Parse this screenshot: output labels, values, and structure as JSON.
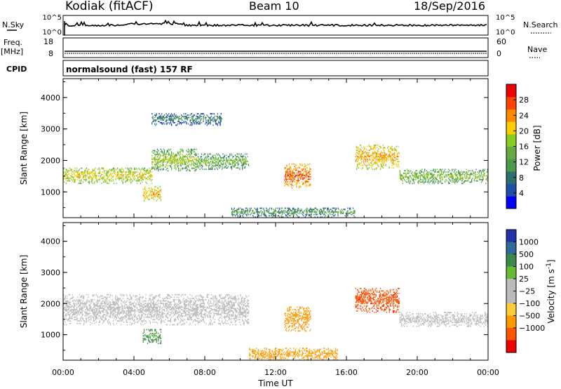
{
  "header": {
    "title": "Kodiak (fitACF)",
    "beam": "Beam 10",
    "date": "18/Sep/2016"
  },
  "panels": {
    "nsky": {
      "label": "N.Sky",
      "ticks_left": [
        "10^5",
        "10^0"
      ],
      "right_label": "N.Search",
      "ticks_right": [
        "10^5",
        "10^0"
      ]
    },
    "freq": {
      "label": "Freq.",
      "unit": "[MHz]",
      "ticks_left": [
        "18",
        "8"
      ],
      "right_label": "Nave",
      "ticks_right": [
        "60",
        "0"
      ]
    },
    "cpid": {
      "label": "CPID",
      "text": "normalsound (fast) 157 RF"
    }
  },
  "colors": {
    "power": [
      "#0000ff",
      "#1f4faa",
      "#2e6e6e",
      "#4c9a4c",
      "#66bb33",
      "#aacc22",
      "#ffcc00",
      "#ff8800",
      "#ff4400",
      "#ee0000"
    ],
    "velocity": [
      "#2233aa",
      "#2f6a9a",
      "#3b8a4a",
      "#66bb33",
      "#bbbbbb",
      "#bbbbbb",
      "#ffcc33",
      "#ff9900",
      "#ff5500",
      "#ee0000"
    ],
    "power_cbar": [
      "#0000ff",
      "#1f4faa",
      "#2e6e6e",
      "#4c9a4c",
      "#66aa44",
      "#88cc22",
      "#ffcc00",
      "#ff8800",
      "#ff4400",
      "#ee0000"
    ],
    "velocity_cbar": [
      "#2233aa",
      "#2f6a9a",
      "#3b8a4a",
      "#66bb33",
      "#bbbbbb",
      "#bbbbbb",
      "#ffcc33",
      "#ff9900",
      "#ff5500",
      "#ee0000"
    ]
  },
  "chart_data": [
    {
      "type": "heatmap",
      "title": "Power",
      "xlabel": "Time UT",
      "ylabel": "Slant Range [km]",
      "xlim": [
        0,
        24
      ],
      "ylim": [
        180,
        4600
      ],
      "x_ticks": [
        "00:00",
        "04:00",
        "08:00",
        "12:00",
        "16:00",
        "20:00",
        "00:00"
      ],
      "y_ticks": [
        1000,
        2000,
        3000,
        4000
      ],
      "colorbar": {
        "label": "Power [dB]",
        "ticks": [
          4,
          8,
          12,
          16,
          20,
          24,
          28
        ],
        "range": [
          0,
          32
        ]
      },
      "features": [
        {
          "t": [
            0.0,
            5.0
          ],
          "range": [
            1250,
            1750
          ],
          "value": 17
        },
        {
          "t": [
            5.0,
            7.5
          ],
          "range": [
            1650,
            2350
          ],
          "value": 14
        },
        {
          "t": [
            7.5,
            10.5
          ],
          "range": [
            1700,
            2200
          ],
          "value": 12
        },
        {
          "t": [
            4.5,
            5.5
          ],
          "range": [
            700,
            1150
          ],
          "value": 20
        },
        {
          "t": [
            12.5,
            14.0
          ],
          "range": [
            1100,
            1900
          ],
          "value": 24
        },
        {
          "t": [
            16.5,
            19.0
          ],
          "range": [
            1700,
            2500
          ],
          "value": 20
        },
        {
          "t": [
            19.0,
            24.0
          ],
          "range": [
            1250,
            1700
          ],
          "value": 13
        },
        {
          "t": [
            5.0,
            9.0
          ],
          "range": [
            3100,
            3500
          ],
          "value": 7
        },
        {
          "t": [
            9.5,
            16.5
          ],
          "range": [
            180,
            500
          ],
          "value": 9
        }
      ]
    },
    {
      "type": "heatmap",
      "title": "Velocity",
      "xlabel": "Time UT",
      "ylabel": "Slant Range [km]",
      "xlim": [
        0,
        24
      ],
      "ylim": [
        180,
        4600
      ],
      "x_ticks": [
        "00:00",
        "04:00",
        "08:00",
        "12:00",
        "16:00",
        "20:00",
        "00:00"
      ],
      "y_ticks": [
        1000,
        2000,
        3000,
        4000
      ],
      "colorbar": {
        "label": "Velocity [m s^-1]",
        "ticks": [
          "1000",
          "500",
          "100",
          "25",
          "−25",
          "−100",
          "−500",
          "−1000"
        ]
      },
      "features": [
        {
          "t": [
            0.0,
            10.5
          ],
          "range": [
            1300,
            2300
          ],
          "value": 0
        },
        {
          "t": [
            4.5,
            5.5
          ],
          "range": [
            700,
            1150
          ],
          "value": 150
        },
        {
          "t": [
            12.5,
            14.0
          ],
          "range": [
            1100,
            1900
          ],
          "value": -300
        },
        {
          "t": [
            16.5,
            19.0
          ],
          "range": [
            1700,
            2500
          ],
          "value": -800
        },
        {
          "t": [
            19.0,
            24.0
          ],
          "range": [
            1250,
            1700
          ],
          "value": 0
        },
        {
          "t": [
            10.5,
            15.5
          ],
          "range": [
            180,
            550
          ],
          "value": -150
        }
      ]
    }
  ]
}
